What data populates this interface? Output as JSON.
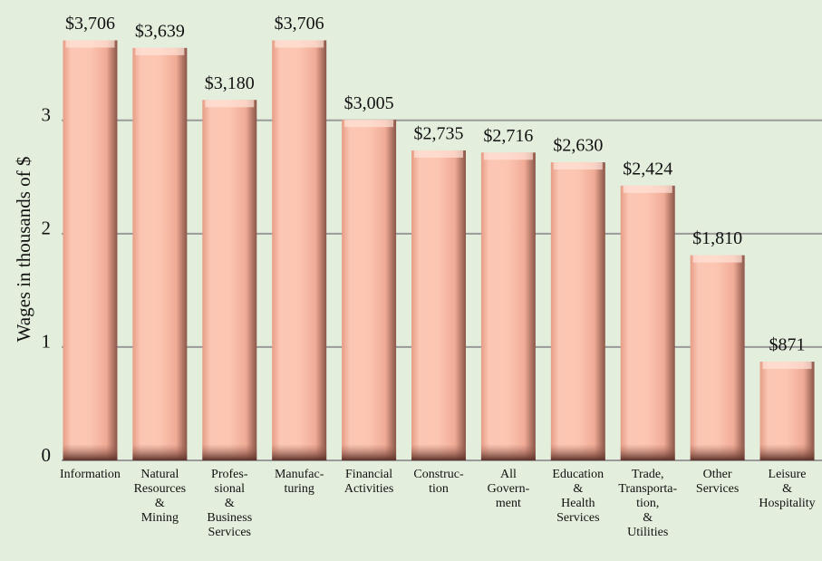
{
  "chart_data": {
    "type": "bar",
    "y_label": "Wages in thousands of $",
    "categories": [
      "Information",
      "Natural\nResources\n&\nMining",
      "Profes-\nsional\n&\nBusiness\nServices",
      "Manufac-\nturing",
      "Financial\nActivities",
      "Construc-\ntion",
      "All\nGovern-\nment",
      "Education\n&\nHealth\nServices",
      "Trade,\nTransporta-\ntion,\n&\nUtilities",
      "Other\nServices",
      "Leisure\n&\nHospitality"
    ],
    "values": [
      3.706,
      3.639,
      3.18,
      3.706,
      3.005,
      2.735,
      2.716,
      2.63,
      2.424,
      1.81,
      0.871
    ],
    "value_labels": [
      "$3,706",
      "$3,639",
      "$3,180",
      "$3,706",
      "$3,005",
      "$2,735",
      "$2,716",
      "$2,630",
      "$2,424",
      "$1,810",
      "$871"
    ],
    "color": "#f9b9a4",
    "ylim": [
      0,
      3.75
    ],
    "yticks": [
      0,
      1,
      2,
      3
    ],
    "grid": true
  }
}
